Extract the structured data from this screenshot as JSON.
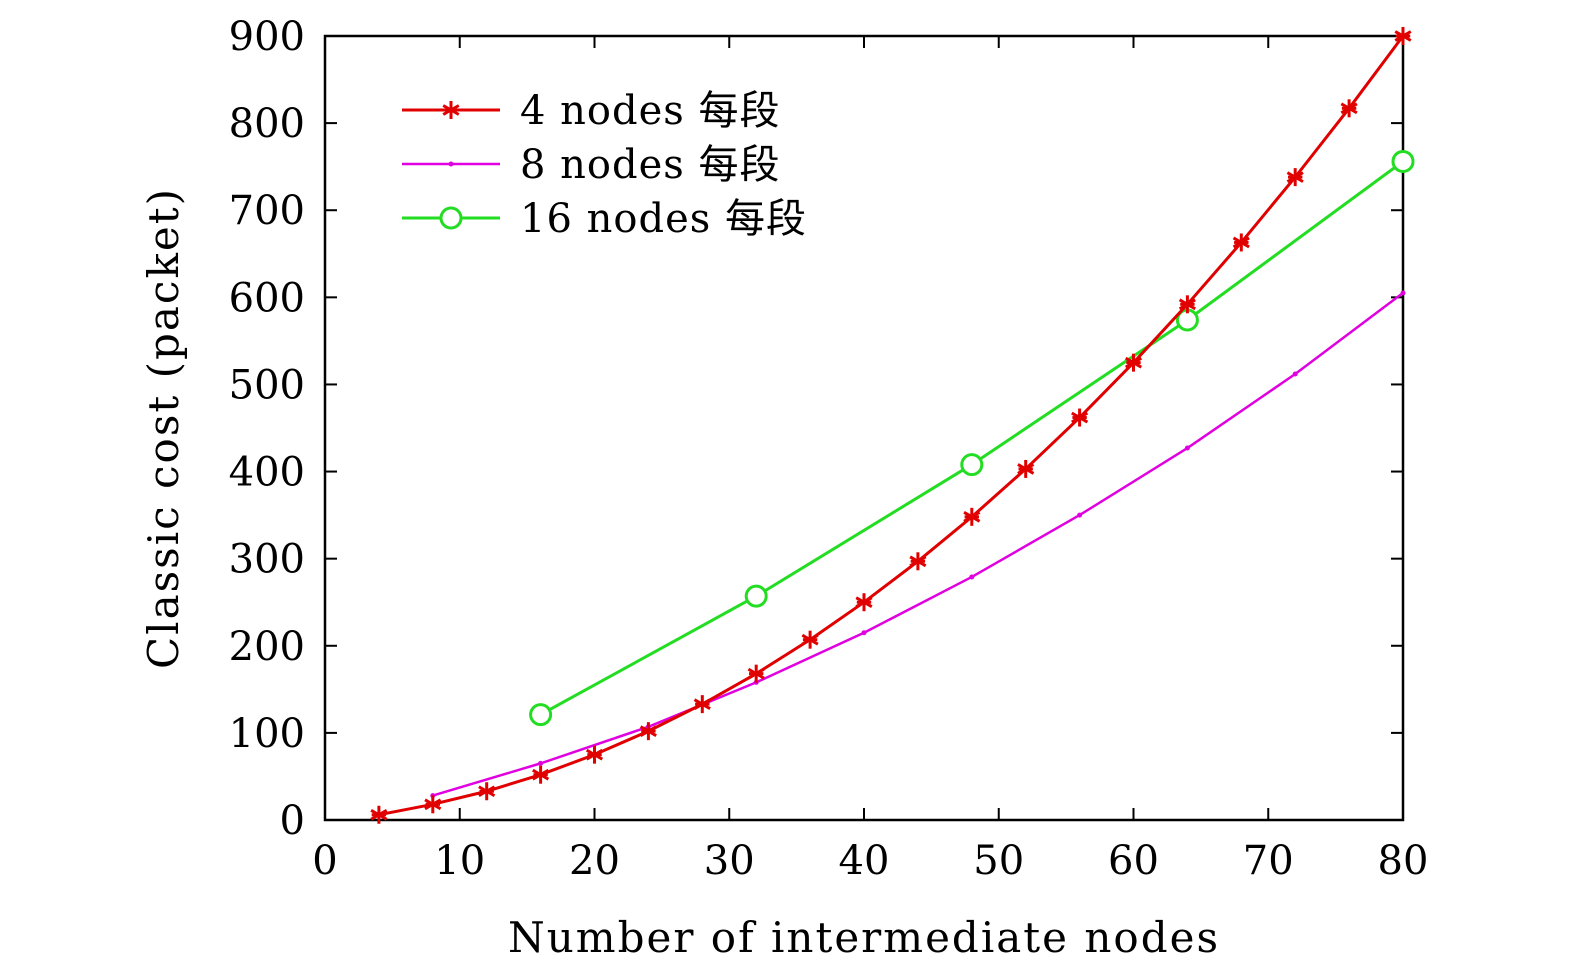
{
  "chart_data": {
    "type": "line",
    "xlabel": "Number of intermediate nodes",
    "ylabel": "Classic cost (packet)",
    "xlim": [
      0,
      80
    ],
    "ylim": [
      0,
      900
    ],
    "xticks": [
      0,
      10,
      20,
      30,
      40,
      50,
      60,
      70,
      80
    ],
    "yticks": [
      0,
      100,
      200,
      300,
      400,
      500,
      600,
      700,
      800,
      900
    ],
    "legend_position": "top-left",
    "series": [
      {
        "name": "4 nodes 每段",
        "color": "#e00000",
        "marker": "asterisk",
        "x": [
          4,
          8,
          12,
          16,
          20,
          24,
          28,
          32,
          36,
          40,
          44,
          48,
          52,
          56,
          60,
          64,
          68,
          72,
          76,
          80
        ],
        "y": [
          6,
          18,
          33,
          52,
          75,
          102,
          133,
          168,
          207,
          250,
          297,
          348,
          403,
          462,
          525,
          592,
          663,
          738,
          817,
          900
        ]
      },
      {
        "name": "8 nodes 每段",
        "color": "#e000e0",
        "marker": "dot",
        "x": [
          8,
          16,
          24,
          32,
          40,
          48,
          56,
          64,
          72,
          80
        ],
        "y": [
          28,
          65,
          107,
          158,
          215,
          279,
          350,
          427,
          512,
          605
        ]
      },
      {
        "name": "16 nodes 每段",
        "color": "#22dd22",
        "marker": "circle",
        "x": [
          16,
          32,
          48,
          64,
          80
        ],
        "y": [
          121,
          257,
          408,
          574,
          756
        ]
      }
    ]
  }
}
